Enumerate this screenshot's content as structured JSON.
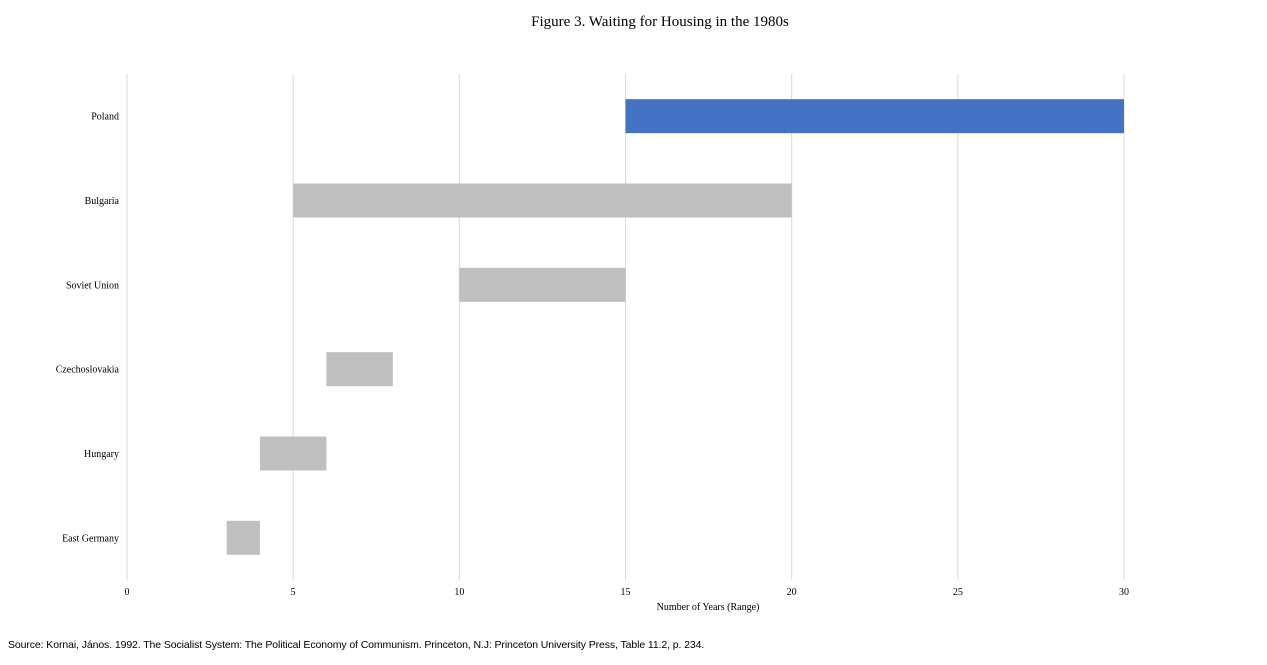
{
  "chart_data": {
    "type": "bar",
    "orientation": "horizontal",
    "stacked_floating_range": true,
    "title": "Figure 3. Waiting for Housing in the 1980s",
    "xlabel": "Number of Years (Range)",
    "ylabel": "",
    "xlim": [
      0,
      30
    ],
    "xticks": [
      0,
      5,
      10,
      15,
      20,
      25,
      30
    ],
    "grid": "vertical",
    "legend": "none",
    "categories": [
      "Poland",
      "Bulgaria",
      "Soviet Union",
      "Czechoslovakia",
      "Hungary",
      "East Germany"
    ],
    "ranges": [
      {
        "category": "Poland",
        "min": 15,
        "max": 30,
        "color": "#4472c4"
      },
      {
        "category": "Bulgaria",
        "min": 5,
        "max": 20,
        "color": "#bfbfbf"
      },
      {
        "category": "Soviet Union",
        "min": 10,
        "max": 15,
        "color": "#bfbfbf"
      },
      {
        "category": "Czechoslovakia",
        "min": 6,
        "max": 8,
        "color": "#bfbfbf"
      },
      {
        "category": "Hungary",
        "min": 4,
        "max": 6,
        "color": "#bfbfbf"
      },
      {
        "category": "East Germany",
        "min": 3,
        "max": 4,
        "color": "#bfbfbf"
      }
    ],
    "colors": {
      "highlight": "#4472c4",
      "default": "#bfbfbf",
      "gridline": "#d9d9d9"
    }
  },
  "source": "Source: Kornai, János. 1992.  The Socialist System: The Political Economy of Communism. Princeton, N.J: Princeton University Press, Table 11.2, p. 234."
}
